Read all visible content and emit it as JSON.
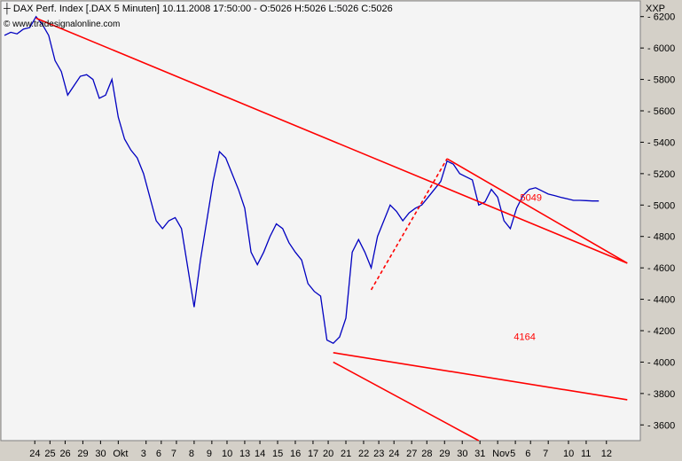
{
  "header": {
    "title": "DAX Perf. Index [.DAX  5 Minuten]",
    "stats": "10.11.2008 17:50:00 - O:5026 H:5026 L:5026 C:5026",
    "source": "© www.tradesignalonline.com",
    "symbol": "XXP"
  },
  "chart_data": {
    "type": "line",
    "title": "DAX Perf. Index [.DAX  5 Minuten]",
    "ylim": [
      3500,
      6300
    ],
    "y_ticks": [
      3600,
      3800,
      4000,
      4200,
      4400,
      4600,
      4800,
      5000,
      5200,
      5400,
      5600,
      5800,
      6000,
      6200
    ],
    "x_ticks": [
      "24",
      "25",
      "26",
      "29",
      "30",
      "Okt",
      "3",
      "6",
      "7",
      "8",
      "9",
      "10",
      "13",
      "14",
      "15",
      "16",
      "17",
      "20",
      "21",
      "22",
      "23",
      "24",
      "27",
      "28",
      "29",
      "30",
      "31",
      "Nov",
      "5",
      "6",
      "7",
      "10",
      "11",
      "12"
    ],
    "colors": {
      "price": "#0000c0",
      "trend": "#ff0000",
      "background": "#f4f4f4"
    },
    "series": [
      {
        "x": [
          0,
          1,
          2,
          3,
          4,
          5,
          6,
          7,
          8,
          9,
          10,
          11,
          12,
          13,
          14,
          15,
          16,
          17,
          18,
          19,
          20,
          21,
          22,
          23,
          24,
          25,
          26,
          27,
          28,
          29,
          30,
          31,
          32,
          33,
          34,
          35,
          36,
          37,
          38,
          39,
          40,
          41,
          42,
          43,
          44,
          45,
          46,
          47,
          48,
          49,
          50,
          51,
          52,
          53,
          54,
          55,
          56,
          57,
          58,
          59,
          60,
          61,
          62,
          63,
          64,
          65,
          66,
          67,
          68,
          69,
          70,
          71,
          72,
          73,
          74,
          75,
          76,
          77,
          78,
          79,
          80,
          81,
          82,
          83,
          84,
          85,
          86,
          87,
          88,
          89,
          90,
          91,
          92,
          93,
          94
        ],
        "values": [
          6080,
          6100,
          6090,
          6120,
          6130,
          6200,
          6150,
          6080,
          5920,
          5850,
          5700,
          5760,
          5820,
          5830,
          5800,
          5680,
          5700,
          5800,
          5560,
          5420,
          5350,
          5300,
          5200,
          5050,
          4900,
          4850,
          4900,
          4920,
          4850,
          4600,
          4350,
          4650,
          4900,
          5150,
          5340,
          5300,
          5200,
          5100,
          4980,
          4700,
          4620,
          4700,
          4800,
          4880,
          4850,
          4760,
          4700,
          4650,
          4500,
          4450,
          4420,
          4140,
          4120,
          4160,
          4280,
          4700,
          4780,
          4700,
          4600,
          4800,
          4900,
          5000,
          4960,
          4900,
          4950,
          4980,
          5000,
          5050,
          5100,
          5150,
          5280,
          5260,
          5200,
          5180,
          5160,
          5000,
          5020,
          5100,
          5050,
          4900,
          4850,
          4980,
          5060,
          5100,
          5110,
          5090,
          5070,
          5060,
          5049,
          5040,
          5030,
          5030,
          5028,
          5026,
          5026
        ]
      }
    ],
    "trendlines": [
      {
        "x1": 5.0,
        "y1": 6190,
        "x2": 98.5,
        "y2": 4630,
        "style": "solid"
      },
      {
        "x1": 52.0,
        "y1": 4060,
        "x2": 98.5,
        "y2": 3760,
        "style": "solid"
      },
      {
        "x1": 70.0,
        "y1": 5295,
        "x2": 98.5,
        "y2": 4630,
        "style": "solid"
      },
      {
        "x1": 58.0,
        "y1": 4460,
        "x2": 70.0,
        "y2": 5295,
        "style": "dashed"
      },
      {
        "x1": 52.0,
        "y1": 4000,
        "x2": 75.0,
        "y2": 3500,
        "style": "solid"
      }
    ],
    "annotations": [
      {
        "text": "5049",
        "x": 81,
        "y": 5049
      },
      {
        "text": "4164",
        "x": 80,
        "y": 4164
      }
    ]
  }
}
